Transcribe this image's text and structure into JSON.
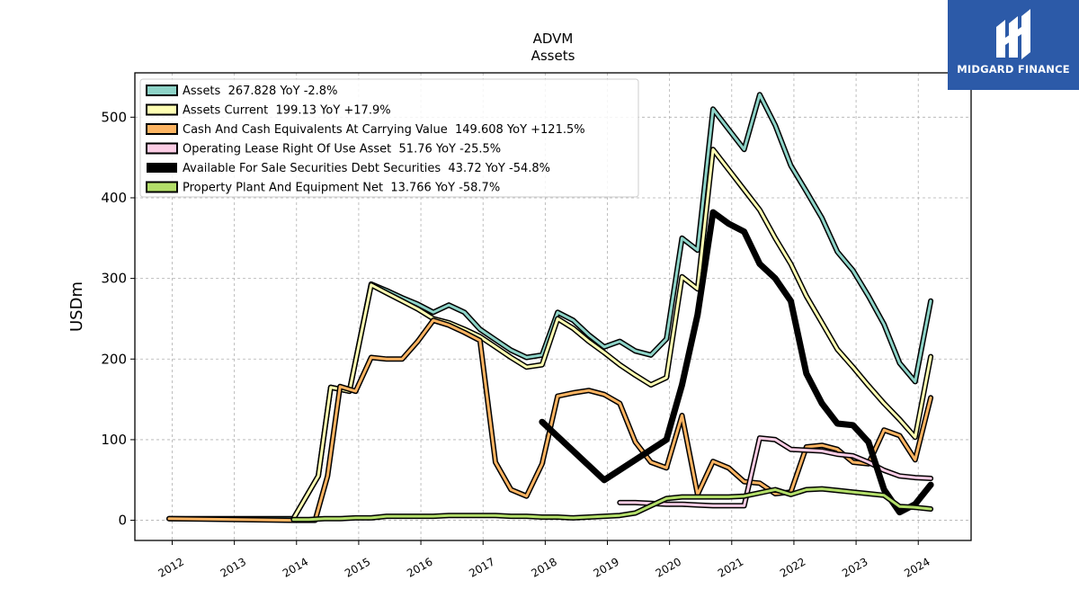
{
  "chart_data": {
    "type": "line",
    "title": "ADVM",
    "subtitle": "Assets",
    "ylabel": "USDm",
    "xlabel": "",
    "ylim": [
      -25,
      555
    ],
    "xlim": [
      2011.4,
      2024.85
    ],
    "yticks": [
      0,
      100,
      200,
      300,
      400,
      500
    ],
    "xticks": [
      "2012",
      "2013",
      "2014",
      "2015",
      "2016",
      "2017",
      "2018",
      "2019",
      "2020",
      "2021",
      "2022",
      "2023",
      "2024"
    ],
    "grid": true,
    "legend_position": "top-left",
    "series": [
      {
        "name": "Assets  267.828 YoY -2.8%",
        "color": "#8dd3c7",
        "width": 3,
        "points": [
          [
            2011.95,
            2
          ],
          [
            2013.95,
            2
          ],
          [
            2014.35,
            55
          ],
          [
            2014.55,
            165
          ],
          [
            2014.85,
            160
          ],
          [
            2015.2,
            293
          ],
          [
            2015.45,
            285
          ],
          [
            2015.7,
            276
          ],
          [
            2015.95,
            268
          ],
          [
            2016.2,
            258
          ],
          [
            2016.45,
            267
          ],
          [
            2016.7,
            258
          ],
          [
            2016.95,
            237
          ],
          [
            2017.2,
            224
          ],
          [
            2017.45,
            211
          ],
          [
            2017.7,
            202
          ],
          [
            2017.95,
            205
          ],
          [
            2018.2,
            258
          ],
          [
            2018.45,
            248
          ],
          [
            2018.7,
            230
          ],
          [
            2018.95,
            215
          ],
          [
            2019.2,
            222
          ],
          [
            2019.45,
            210
          ],
          [
            2019.7,
            205
          ],
          [
            2019.95,
            225
          ],
          [
            2020.2,
            350
          ],
          [
            2020.45,
            335
          ],
          [
            2020.7,
            510
          ],
          [
            2020.95,
            485
          ],
          [
            2021.2,
            460
          ],
          [
            2021.45,
            528
          ],
          [
            2021.7,
            490
          ],
          [
            2021.95,
            440
          ],
          [
            2022.2,
            408
          ],
          [
            2022.45,
            375
          ],
          [
            2022.7,
            333
          ],
          [
            2022.95,
            310
          ],
          [
            2023.2,
            278
          ],
          [
            2023.45,
            243
          ],
          [
            2023.7,
            195
          ],
          [
            2023.95,
            172
          ],
          [
            2024.2,
            272
          ]
        ]
      },
      {
        "name": "Assets Current  199.13 YoY +17.9%",
        "color": "#ffffb3",
        "width": 3,
        "points": [
          [
            2013.95,
            2
          ],
          [
            2014.35,
            55
          ],
          [
            2014.55,
            165
          ],
          [
            2014.85,
            160
          ],
          [
            2015.2,
            292
          ],
          [
            2015.45,
            282
          ],
          [
            2015.7,
            272
          ],
          [
            2015.95,
            262
          ],
          [
            2016.2,
            250
          ],
          [
            2016.45,
            245
          ],
          [
            2016.7,
            237
          ],
          [
            2016.95,
            228
          ],
          [
            2017.2,
            215
          ],
          [
            2017.45,
            202
          ],
          [
            2017.7,
            190
          ],
          [
            2017.95,
            193
          ],
          [
            2018.2,
            250
          ],
          [
            2018.45,
            238
          ],
          [
            2018.7,
            222
          ],
          [
            2018.95,
            208
          ],
          [
            2019.2,
            193
          ],
          [
            2019.45,
            180
          ],
          [
            2019.7,
            168
          ],
          [
            2019.95,
            177
          ],
          [
            2020.2,
            302
          ],
          [
            2020.45,
            287
          ],
          [
            2020.7,
            460
          ],
          [
            2020.95,
            435
          ],
          [
            2021.2,
            410
          ],
          [
            2021.45,
            385
          ],
          [
            2021.7,
            350
          ],
          [
            2021.95,
            318
          ],
          [
            2022.2,
            278
          ],
          [
            2022.45,
            245
          ],
          [
            2022.7,
            212
          ],
          [
            2022.95,
            190
          ],
          [
            2023.2,
            167
          ],
          [
            2023.45,
            145
          ],
          [
            2023.7,
            125
          ],
          [
            2023.95,
            103
          ],
          [
            2024.2,
            203
          ]
        ]
      },
      {
        "name": "Cash And Cash Equivalents At Carrying Value  149.608 YoY +121.5%",
        "color": "#fdb462",
        "width": 3,
        "points": [
          [
            2011.95,
            2
          ],
          [
            2013.95,
            0
          ],
          [
            2014.3,
            0
          ],
          [
            2014.5,
            55
          ],
          [
            2014.7,
            166
          ],
          [
            2014.95,
            160
          ],
          [
            2015.2,
            202
          ],
          [
            2015.45,
            200
          ],
          [
            2015.7,
            200
          ],
          [
            2015.95,
            222
          ],
          [
            2016.2,
            248
          ],
          [
            2016.45,
            242
          ],
          [
            2016.7,
            233
          ],
          [
            2016.95,
            223
          ],
          [
            2017.2,
            72
          ],
          [
            2017.45,
            38
          ],
          [
            2017.7,
            30
          ],
          [
            2017.95,
            70
          ],
          [
            2018.2,
            154
          ],
          [
            2018.45,
            158
          ],
          [
            2018.7,
            161
          ],
          [
            2018.95,
            156
          ],
          [
            2019.2,
            145
          ],
          [
            2019.45,
            97
          ],
          [
            2019.7,
            72
          ],
          [
            2019.95,
            65
          ],
          [
            2020.2,
            130
          ],
          [
            2020.45,
            32
          ],
          [
            2020.7,
            73
          ],
          [
            2020.95,
            65
          ],
          [
            2021.2,
            48
          ],
          [
            2021.45,
            46
          ],
          [
            2021.7,
            33
          ],
          [
            2021.95,
            35
          ],
          [
            2022.2,
            91
          ],
          [
            2022.45,
            93
          ],
          [
            2022.7,
            88
          ],
          [
            2022.95,
            72
          ],
          [
            2023.2,
            70
          ],
          [
            2023.45,
            112
          ],
          [
            2023.7,
            105
          ],
          [
            2023.95,
            75
          ],
          [
            2024.2,
            152
          ]
        ]
      },
      {
        "name": "Operating Lease Right Of Use Asset  51.76 YoY -25.5%",
        "color": "#fccde5",
        "width": 3,
        "points": [
          [
            2019.2,
            22
          ],
          [
            2019.45,
            22
          ],
          [
            2019.7,
            21
          ],
          [
            2019.95,
            20
          ],
          [
            2020.2,
            20
          ],
          [
            2020.45,
            19
          ],
          [
            2020.7,
            18
          ],
          [
            2020.95,
            18
          ],
          [
            2021.2,
            18
          ],
          [
            2021.45,
            102
          ],
          [
            2021.7,
            100
          ],
          [
            2021.95,
            88
          ],
          [
            2022.2,
            87
          ],
          [
            2022.45,
            86
          ],
          [
            2022.7,
            82
          ],
          [
            2022.95,
            80
          ],
          [
            2023.2,
            72
          ],
          [
            2023.45,
            62
          ],
          [
            2023.7,
            55
          ],
          [
            2023.95,
            53
          ],
          [
            2024.2,
            52
          ]
        ]
      },
      {
        "name": "Available For Sale Securities Debt Securities  43.72 YoY -54.8%",
        "color": "#000000",
        "width": 7,
        "points": [
          [
            2017.95,
            122
          ],
          [
            2018.95,
            50
          ],
          [
            2019.95,
            100
          ],
          [
            2020.2,
            168
          ],
          [
            2020.45,
            255
          ],
          [
            2020.7,
            382
          ],
          [
            2020.95,
            368
          ],
          [
            2021.2,
            358
          ],
          [
            2021.45,
            318
          ],
          [
            2021.7,
            300
          ],
          [
            2021.95,
            272
          ],
          [
            2022.2,
            182
          ],
          [
            2022.45,
            145
          ],
          [
            2022.7,
            120
          ],
          [
            2022.95,
            118
          ],
          [
            2023.2,
            97
          ],
          [
            2023.45,
            38
          ],
          [
            2023.7,
            10
          ],
          [
            2023.95,
            20
          ],
          [
            2024.2,
            44
          ]
        ]
      },
      {
        "name": "Property Plant And Equipment Net  13.766 YoY -58.7%",
        "color": "#b3de69",
        "width": 3,
        "points": [
          [
            2013.95,
            1
          ],
          [
            2014.2,
            1
          ],
          [
            2014.45,
            2
          ],
          [
            2014.7,
            2
          ],
          [
            2014.95,
            3
          ],
          [
            2015.2,
            3
          ],
          [
            2015.45,
            5
          ],
          [
            2015.7,
            5
          ],
          [
            2015.95,
            5
          ],
          [
            2016.2,
            5
          ],
          [
            2016.45,
            6
          ],
          [
            2016.7,
            6
          ],
          [
            2016.95,
            6
          ],
          [
            2017.2,
            6
          ],
          [
            2017.45,
            5
          ],
          [
            2017.7,
            5
          ],
          [
            2017.95,
            4
          ],
          [
            2018.2,
            4
          ],
          [
            2018.45,
            3
          ],
          [
            2018.7,
            4
          ],
          [
            2018.95,
            5
          ],
          [
            2019.2,
            6
          ],
          [
            2019.45,
            9
          ],
          [
            2019.7,
            18
          ],
          [
            2019.95,
            27
          ],
          [
            2020.2,
            29
          ],
          [
            2020.45,
            29
          ],
          [
            2020.7,
            29
          ],
          [
            2020.95,
            29
          ],
          [
            2021.2,
            30
          ],
          [
            2021.45,
            34
          ],
          [
            2021.7,
            38
          ],
          [
            2021.95,
            32
          ],
          [
            2022.2,
            38
          ],
          [
            2022.45,
            39
          ],
          [
            2022.7,
            37
          ],
          [
            2022.95,
            35
          ],
          [
            2023.2,
            33
          ],
          [
            2023.45,
            31
          ],
          [
            2023.7,
            17
          ],
          [
            2023.95,
            16
          ],
          [
            2024.2,
            14
          ]
        ]
      }
    ]
  },
  "logo": {
    "brand": "MIDGARD FINANCE",
    "color": "#2c5aa8"
  }
}
